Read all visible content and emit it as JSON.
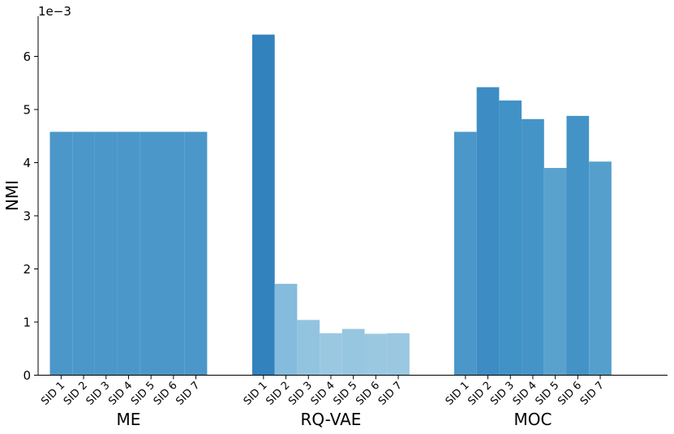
{
  "chart_data": {
    "type": "bar",
    "ylabel": "NMI",
    "y_multiplier_label": "1e−3",
    "ylim": [
      0,
      6.7
    ],
    "yticks": [
      "0",
      "1",
      "2",
      "3",
      "4",
      "5",
      "6"
    ],
    "grid": false,
    "groups": [
      {
        "name": "ME",
        "categories": [
          "SID 1",
          "SID 2",
          "SID 3",
          "SID 4",
          "SID 5",
          "SID 6",
          "SID 7"
        ],
        "values": [
          4.58,
          4.58,
          4.58,
          4.58,
          4.58,
          4.58,
          4.58
        ],
        "colors": [
          "#4b97c9",
          "#4b97c9",
          "#4b97c9",
          "#4b97c9",
          "#4b97c9",
          "#4b97c9",
          "#4b97c9"
        ]
      },
      {
        "name": "RQ-VAE",
        "categories": [
          "SID 1",
          "SID 2",
          "SID 3",
          "SID 4",
          "SID 5",
          "SID 6",
          "SID 7"
        ],
        "values": [
          6.41,
          1.72,
          1.04,
          0.79,
          0.87,
          0.78,
          0.79
        ],
        "colors": [
          "#3282be",
          "#85bbdc",
          "#93c4df",
          "#9ac8e1",
          "#97c6e0",
          "#9ac8e1",
          "#9ac8e1"
        ]
      },
      {
        "name": "MOC",
        "categories": [
          "SID 1",
          "SID 2",
          "SID 3",
          "SID 4",
          "SID 5",
          "SID 6",
          "SID 7"
        ],
        "values": [
          4.58,
          5.42,
          5.17,
          4.82,
          3.9,
          4.88,
          4.02
        ],
        "colors": [
          "#4b97c9",
          "#3d8dc4",
          "#4192c6",
          "#4494c8",
          "#5aa2ce",
          "#4393c7",
          "#559fcd"
        ]
      }
    ]
  }
}
